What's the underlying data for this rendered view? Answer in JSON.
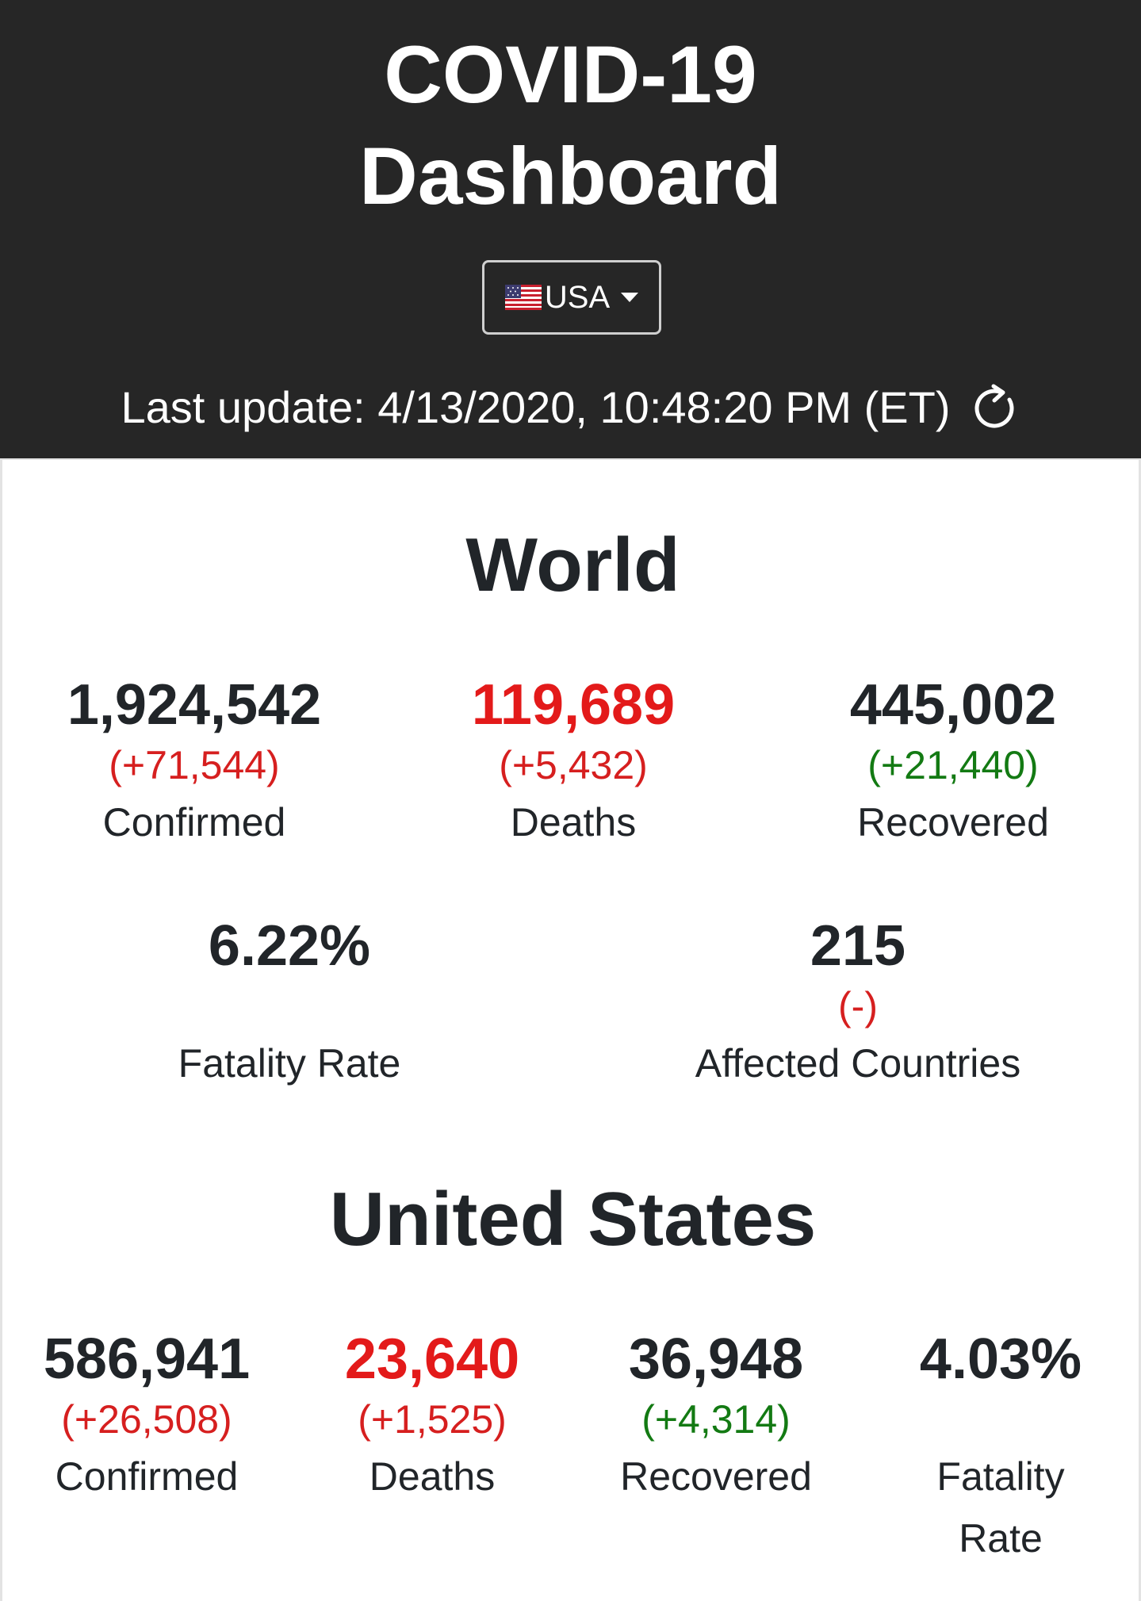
{
  "header": {
    "title_line1": "COVID-19",
    "title_line2": "Dashboard",
    "country_selector": {
      "flag_icon": "us-flag-icon",
      "selected": "USA"
    },
    "last_update": "Last update: 4/13/2020, 10:48:20 PM (ET)",
    "refresh_icon": "refresh-icon"
  },
  "world": {
    "title": "World",
    "confirmed": {
      "value": "1,924,542",
      "delta": "(+71,544)",
      "label": "Confirmed"
    },
    "deaths": {
      "value": "119,689",
      "delta": "(+5,432)",
      "label": "Deaths"
    },
    "recovered": {
      "value": "445,002",
      "delta": "(+21,440)",
      "label": "Recovered"
    },
    "fatality_rate": {
      "value": "6.22%",
      "label": "Fatality Rate"
    },
    "affected_countries": {
      "value": "215",
      "delta": "(-)",
      "label": "Affected Countries"
    }
  },
  "usa": {
    "title": "United States",
    "confirmed": {
      "value": "586,941",
      "delta": "(+26,508)",
      "label": "Confirmed"
    },
    "deaths": {
      "value": "23,640",
      "delta": "(+1,525)",
      "label": "Deaths"
    },
    "recovered": {
      "value": "36,948",
      "delta": "(+4,314)",
      "label": "Recovered"
    },
    "fatality_rate": {
      "value": "4.03%",
      "label_line1": "Fatality",
      "label_line2": "Rate"
    }
  },
  "colors": {
    "header_bg": "#262626",
    "deaths_red": "#e31a1a",
    "delta_red": "#d61f1f",
    "delta_green": "#137a13",
    "text_dark": "#212529"
  }
}
